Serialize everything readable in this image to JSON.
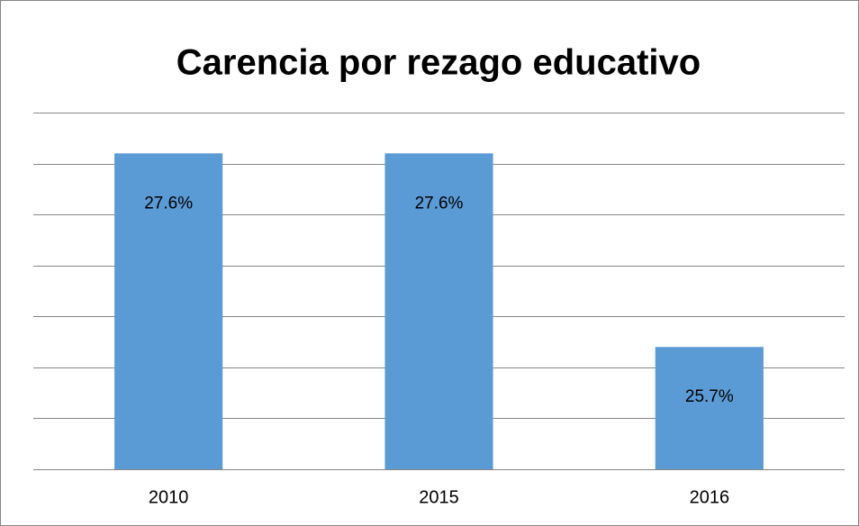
{
  "chart_data": {
    "type": "bar",
    "title": "Carencia por rezago educativo",
    "categories": [
      "2010",
      "2015",
      "2016"
    ],
    "values": [
      27.6,
      27.6,
      25.7
    ],
    "value_labels": [
      "27.6%",
      "27.6%",
      "25.7%"
    ],
    "color": "#5b9bd5",
    "ylim": [
      24.5,
      28
    ],
    "yticks": [
      24.5,
      25,
      25.5,
      26,
      26.5,
      27,
      27.5,
      28
    ],
    "grid": true
  }
}
